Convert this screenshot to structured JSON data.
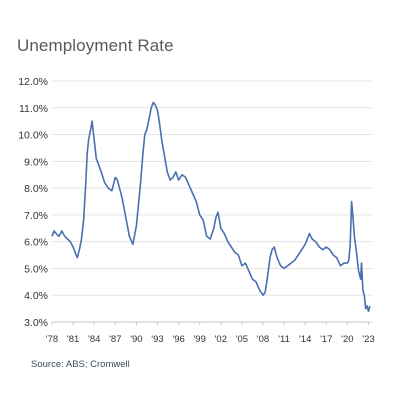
{
  "header": {
    "title": "Unemployment Rate"
  },
  "footer": {
    "source": "Source: ABS; Cromwell"
  },
  "colors": {
    "line": "#4a6fb0",
    "grid": "#e3e3e3",
    "axis": "#c8c8c8"
  },
  "chart_data": {
    "type": "line",
    "title": "Unemployment Rate",
    "xlabel": "",
    "ylabel": "",
    "ylim": [
      3.0,
      12.0
    ],
    "xlim": [
      1978.0,
      2023.5
    ],
    "grid": true,
    "legend": "none",
    "y_ticks": [
      "3.0%",
      "4.0%",
      "5.0%",
      "6.0%",
      "7.0%",
      "8.0%",
      "9.0%",
      "10.0%",
      "11.0%",
      "12.0%"
    ],
    "x_ticks": [
      "'78",
      "'81",
      "'84",
      "'87",
      "'90",
      "'93",
      "'96",
      "'99",
      "'02",
      "'05",
      "'08",
      "'11",
      "'14",
      "'17",
      "'20",
      "'23"
    ],
    "series": [
      {
        "x": [
          1978.0,
          1978.3,
          1978.6,
          1979.0,
          1979.4,
          1979.8,
          1980.2,
          1980.6,
          1981.0,
          1981.3,
          1981.6,
          1981.9,
          1982.2,
          1982.5,
          1982.8,
          1983.0,
          1983.2,
          1983.5,
          1983.7,
          1984.0,
          1984.3,
          1984.6,
          1985.0,
          1985.5,
          1986.0,
          1986.5,
          1987.0,
          1987.3,
          1987.6,
          1988.0,
          1988.5,
          1989.0,
          1989.5,
          1990.0,
          1990.3,
          1990.6,
          1990.9,
          1991.2,
          1991.5,
          1991.8,
          1992.1,
          1992.4,
          1992.7,
          1993.0,
          1993.3,
          1993.6,
          1994.0,
          1994.4,
          1994.8,
          1995.2,
          1995.6,
          1996.0,
          1996.5,
          1997.0,
          1997.5,
          1998.0,
          1998.5,
          1999.0,
          1999.5,
          2000.0,
          2000.5,
          2001.0,
          2001.3,
          2001.6,
          2002.0,
          2002.5,
          2003.0,
          2003.5,
          2004.0,
          2004.5,
          2005.0,
          2005.5,
          2006.0,
          2006.5,
          2007.0,
          2007.5,
          2008.0,
          2008.3,
          2008.6,
          2009.0,
          2009.3,
          2009.6,
          2010.0,
          2010.5,
          2011.0,
          2011.5,
          2012.0,
          2012.5,
          2013.0,
          2013.5,
          2014.0,
          2014.3,
          2014.6,
          2015.0,
          2015.5,
          2016.0,
          2016.5,
          2017.0,
          2017.5,
          2018.0,
          2018.5,
          2019.0,
          2019.5,
          2020.0,
          2020.2,
          2020.4,
          2020.6,
          2020.8,
          2021.0,
          2021.3,
          2021.6,
          2021.9,
          2022.0,
          2022.2,
          2022.4,
          2022.6,
          2022.8,
          2023.0,
          2023.2
        ],
        "y": [
          6.2,
          6.4,
          6.3,
          6.2,
          6.4,
          6.2,
          6.1,
          6.0,
          5.8,
          5.6,
          5.4,
          5.7,
          6.1,
          6.8,
          8.2,
          9.3,
          9.8,
          10.2,
          10.5,
          9.8,
          9.1,
          8.9,
          8.6,
          8.2,
          8.0,
          7.9,
          8.4,
          8.3,
          8.0,
          7.6,
          6.9,
          6.2,
          5.9,
          6.6,
          7.4,
          8.2,
          9.2,
          10.0,
          10.2,
          10.6,
          11.0,
          11.2,
          11.1,
          10.9,
          10.4,
          9.8,
          9.2,
          8.6,
          8.3,
          8.4,
          8.6,
          8.3,
          8.5,
          8.4,
          8.1,
          7.8,
          7.5,
          7.0,
          6.8,
          6.2,
          6.1,
          6.5,
          6.9,
          7.1,
          6.5,
          6.3,
          6.0,
          5.8,
          5.6,
          5.5,
          5.1,
          5.2,
          4.9,
          4.6,
          4.5,
          4.2,
          4.0,
          4.1,
          4.6,
          5.4,
          5.7,
          5.8,
          5.4,
          5.1,
          5.0,
          5.1,
          5.2,
          5.3,
          5.5,
          5.7,
          5.9,
          6.1,
          6.3,
          6.1,
          6.0,
          5.8,
          5.7,
          5.8,
          5.7,
          5.5,
          5.4,
          5.1,
          5.2,
          5.2,
          5.3,
          5.9,
          7.5,
          6.9,
          6.2,
          5.6,
          4.9,
          4.6,
          5.2,
          4.2,
          4.0,
          3.5,
          3.6,
          3.4,
          3.6
        ]
      }
    ]
  }
}
